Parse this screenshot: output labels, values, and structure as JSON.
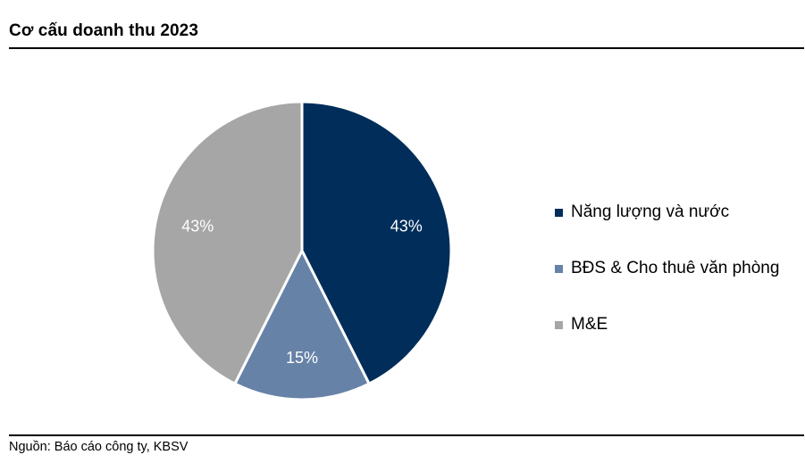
{
  "header": {
    "title": "Cơ cấu doanh thu 2023"
  },
  "footer": {
    "source": "Nguồn: Báo cáo công ty, KBSV"
  },
  "chart_data": {
    "type": "pie",
    "title": "Cơ cấu doanh thu 2023",
    "start_angle_deg": 0,
    "direction": "clockwise",
    "slices": [
      {
        "label": "Năng lượng và nước",
        "value": 43,
        "display": "43%",
        "color": "#002d5a"
      },
      {
        "label": "BĐS & Cho thuê văn phòng",
        "value": 15,
        "display": "15%",
        "color": "#6682a7"
      },
      {
        "label": "M&E",
        "value": 43,
        "display": "43%",
        "color": "#a6a6a6"
      }
    ],
    "legend_position": "right"
  }
}
